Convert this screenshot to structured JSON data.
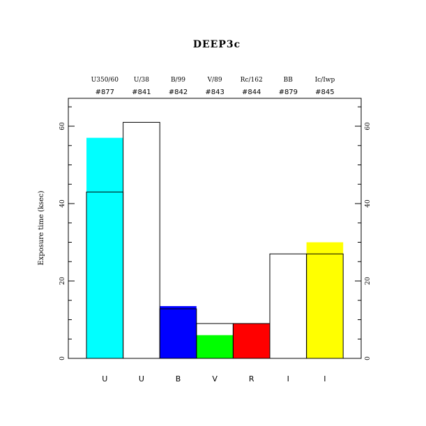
{
  "chart_data": {
    "type": "bar",
    "title": "DEEP3c",
    "ylabel": "Exposure time (ksec)",
    "xlabel": "",
    "ylim": [
      0,
      67
    ],
    "yticks": [
      0,
      20,
      40,
      60
    ],
    "grid": false,
    "bars": [
      {
        "band": "U",
        "filter": "U350/60",
        "id": "#877",
        "fill_value": 57,
        "outline_value": 43,
        "color": "#00ffff"
      },
      {
        "band": "U",
        "filter": "U/38",
        "id": "#841",
        "fill_value": 0,
        "outline_value": 61,
        "color": "#ffffff"
      },
      {
        "band": "B",
        "filter": "B/99",
        "id": "#842",
        "fill_value": 13.5,
        "outline_value": 12.8,
        "color": "#0000ff"
      },
      {
        "band": "V",
        "filter": "V/89",
        "id": "#843",
        "fill_value": 6,
        "outline_value": 9,
        "color": "#00ff00"
      },
      {
        "band": "R",
        "filter": "Rc/162",
        "id": "#844",
        "fill_value": 9,
        "outline_value": 9,
        "color": "#ff0000"
      },
      {
        "band": "I",
        "filter": "BB",
        "id": "#879",
        "fill_value": 0,
        "outline_value": 27,
        "color": "#ffffff"
      },
      {
        "band": "I",
        "filter": "Ic/Iwp",
        "id": "#845",
        "fill_value": 30,
        "outline_value": 27,
        "color": "#ffff00"
      }
    ]
  }
}
